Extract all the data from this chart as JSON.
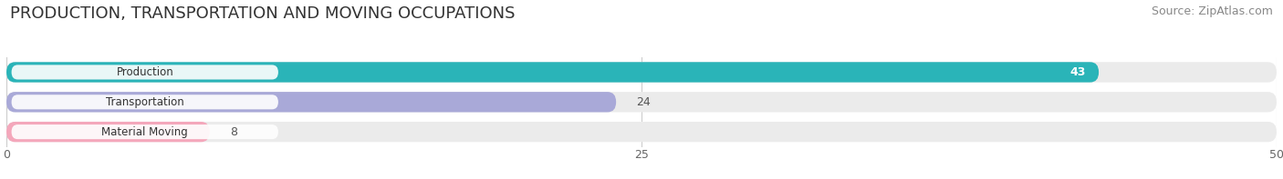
{
  "title": "PRODUCTION, TRANSPORTATION AND MOVING OCCUPATIONS",
  "source": "Source: ZipAtlas.com",
  "categories": [
    "Production",
    "Transportation",
    "Material Moving"
  ],
  "values": [
    43,
    24,
    8
  ],
  "xlim": [
    0,
    50
  ],
  "xticks": [
    0,
    25,
    50
  ],
  "bar_colors": [
    "#2ab4b8",
    "#a9a9d8",
    "#f4a7bb"
  ],
  "bar_bg_colors": [
    "#ebebeb",
    "#ebebeb",
    "#ebebeb"
  ],
  "value_label_colors": [
    "white",
    "#666666",
    "#666666"
  ],
  "title_fontsize": 13,
  "source_fontsize": 9,
  "tick_fontsize": 9,
  "bar_label_fontsize": 9,
  "cat_label_fontsize": 8.5,
  "background_color": "#ffffff"
}
